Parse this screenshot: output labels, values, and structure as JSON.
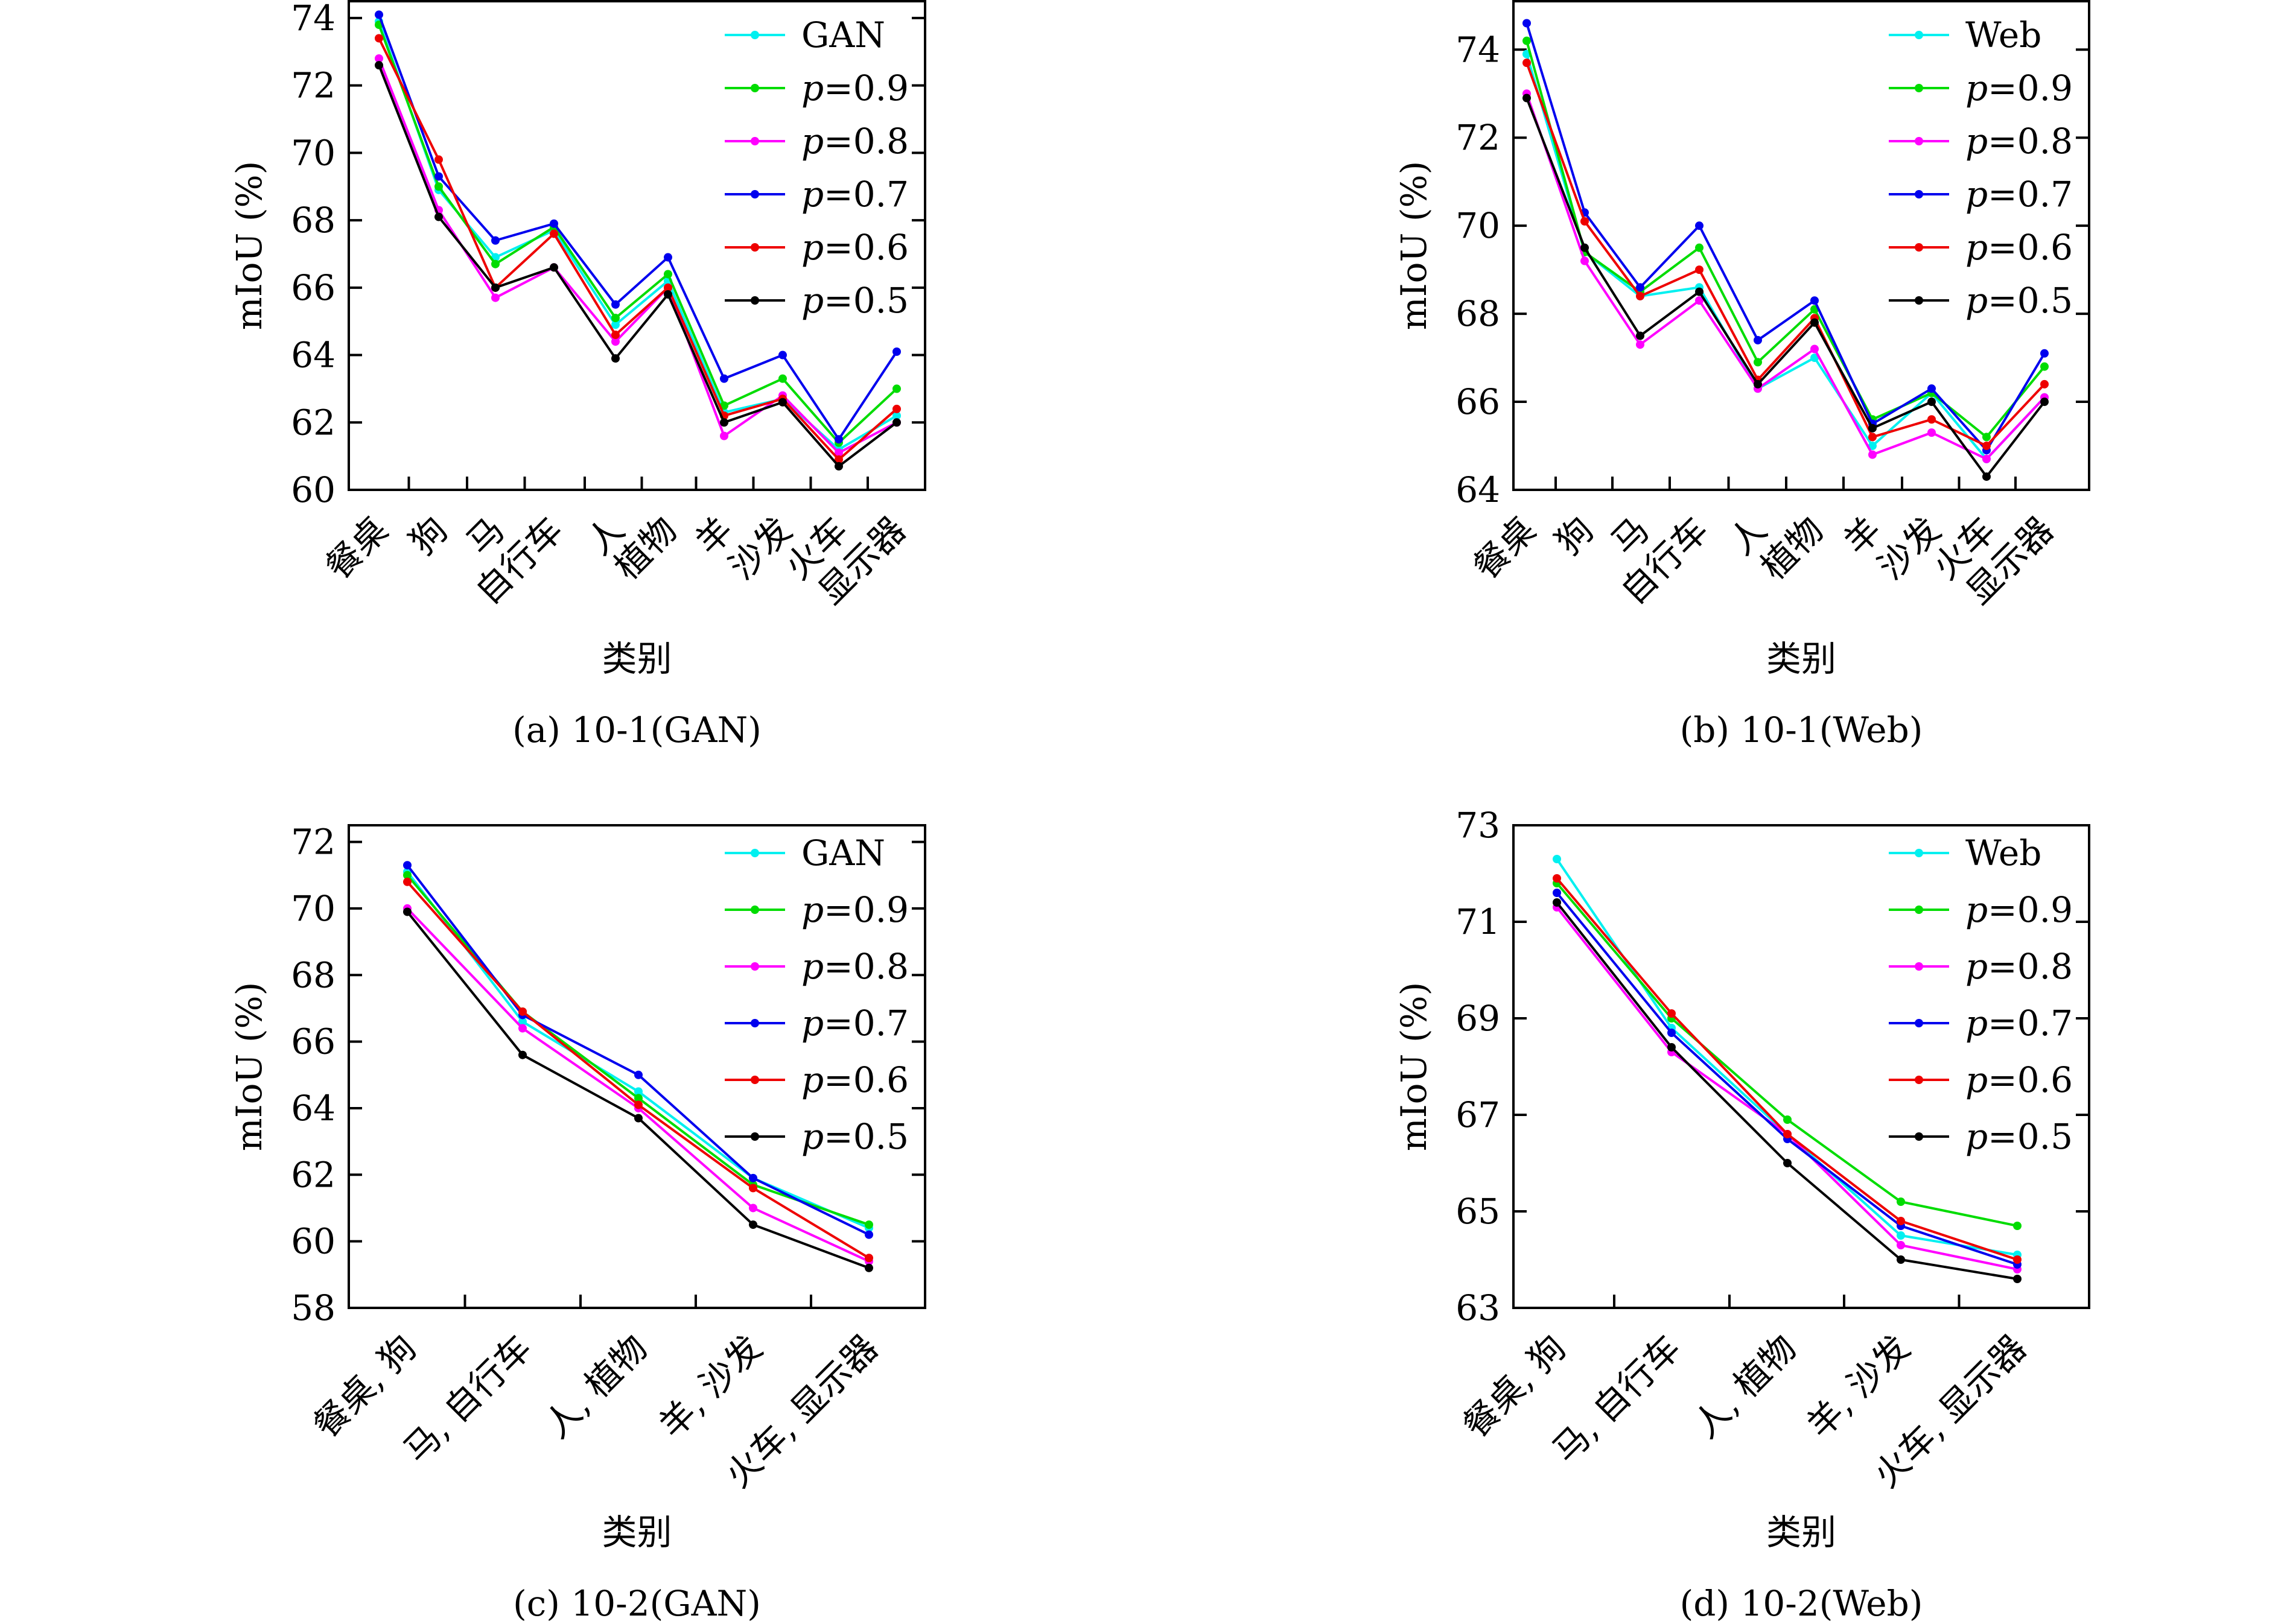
{
  "chart_data": [
    {
      "type": "line",
      "caption": "(a) 10-1(GAN)",
      "xlabel": "类别",
      "ylabel": "mIoU (%)",
      "ylim": [
        60,
        74.5
      ],
      "yticks": [
        "60",
        "62",
        "64",
        "66",
        "68",
        "70",
        "72",
        "74"
      ],
      "categories": [
        "餐桌",
        "狗",
        "马",
        "自行车",
        "人",
        "植物",
        "羊",
        "沙发",
        "火车",
        "显示器"
      ],
      "legend_position": "top-right",
      "series": [
        {
          "name": "GAN",
          "color": "#00f0f0",
          "values": [
            73.9,
            68.9,
            66.9,
            67.7,
            64.9,
            66.2,
            62.3,
            62.7,
            61.2,
            62.2
          ]
        },
        {
          "name": "p=0.9",
          "color": "#00dc00",
          "values": [
            73.8,
            69.0,
            66.7,
            67.8,
            65.1,
            66.4,
            62.5,
            63.3,
            61.4,
            63.0
          ]
        },
        {
          "name": "p=0.8",
          "color": "#ff00ff",
          "values": [
            72.8,
            68.3,
            65.7,
            66.6,
            64.4,
            66.0,
            61.6,
            62.8,
            61.1,
            62.0
          ]
        },
        {
          "name": "p=0.7",
          "color": "#0000ee",
          "values": [
            74.1,
            69.3,
            67.4,
            67.9,
            65.5,
            66.9,
            63.3,
            64.0,
            61.5,
            64.1
          ]
        },
        {
          "name": "p=0.6",
          "color": "#ee0000",
          "values": [
            73.4,
            69.8,
            66.0,
            67.6,
            64.6,
            66.0,
            62.2,
            62.7,
            60.9,
            62.4
          ]
        },
        {
          "name": "p=0.5",
          "color": "#000000",
          "values": [
            72.6,
            68.1,
            66.0,
            66.6,
            63.9,
            65.8,
            62.0,
            62.6,
            60.7,
            62.0
          ]
        }
      ]
    },
    {
      "type": "line",
      "caption": "(b) 10-1(Web)",
      "xlabel": "类别",
      "ylabel": "mIoU (%)",
      "ylim": [
        64,
        75.1
      ],
      "yticks": [
        "64",
        "66",
        "68",
        "70",
        "72",
        "74"
      ],
      "categories": [
        "餐桌",
        "狗",
        "马",
        "自行车",
        "人",
        "植物",
        "羊",
        "沙发",
        "火车",
        "显示器"
      ],
      "legend_position": "top-right",
      "series": [
        {
          "name": "Web",
          "color": "#00f0f0",
          "values": [
            73.9,
            69.4,
            68.4,
            68.6,
            66.3,
            67.0,
            65.0,
            66.2,
            64.7,
            66.1
          ]
        },
        {
          "name": "p=0.9",
          "color": "#00dc00",
          "values": [
            74.2,
            69.4,
            68.5,
            69.5,
            66.9,
            68.1,
            65.6,
            66.2,
            65.2,
            66.8
          ]
        },
        {
          "name": "p=0.8",
          "color": "#ff00ff",
          "values": [
            73.0,
            69.2,
            67.3,
            68.3,
            66.3,
            67.2,
            64.8,
            65.3,
            64.7,
            66.1
          ]
        },
        {
          "name": "p=0.7",
          "color": "#0000ee",
          "values": [
            74.6,
            70.3,
            68.6,
            70.0,
            67.4,
            68.3,
            65.5,
            66.3,
            64.9,
            67.1
          ]
        },
        {
          "name": "p=0.6",
          "color": "#ee0000",
          "values": [
            73.7,
            70.1,
            68.4,
            69.0,
            66.5,
            67.9,
            65.2,
            65.6,
            65.0,
            66.4
          ]
        },
        {
          "name": "p=0.5",
          "color": "#000000",
          "values": [
            72.9,
            69.5,
            67.5,
            68.5,
            66.4,
            67.8,
            65.4,
            66.0,
            64.3,
            66.0
          ]
        }
      ]
    },
    {
      "type": "line",
      "caption": "(c) 10-2(GAN)",
      "xlabel": "类别",
      "ylabel": "mIoU (%)",
      "ylim": [
        58,
        72.5
      ],
      "yticks": [
        "58",
        "60",
        "62",
        "64",
        "66",
        "68",
        "70",
        "72"
      ],
      "categories": [
        "餐桌, 狗",
        "马, 自行车",
        "人, 植物",
        "羊, 沙发",
        "火车, 显示器"
      ],
      "legend_position": "top-right",
      "series": [
        {
          "name": "GAN",
          "color": "#00f0f0",
          "values": [
            71.1,
            66.6,
            64.5,
            61.9,
            60.4
          ]
        },
        {
          "name": "p=0.9",
          "color": "#00dc00",
          "values": [
            71.0,
            66.9,
            64.3,
            61.7,
            60.5
          ]
        },
        {
          "name": "p=0.8",
          "color": "#ff00ff",
          "values": [
            70.0,
            66.4,
            64.0,
            61.0,
            59.4
          ]
        },
        {
          "name": "p=0.7",
          "color": "#0000ee",
          "values": [
            71.3,
            66.8,
            65.0,
            61.9,
            60.2
          ]
        },
        {
          "name": "p=0.6",
          "color": "#ee0000",
          "values": [
            70.8,
            66.9,
            64.1,
            61.6,
            59.5
          ]
        },
        {
          "name": "p=0.5",
          "color": "#000000",
          "values": [
            69.9,
            65.6,
            63.7,
            60.5,
            59.2
          ]
        }
      ]
    },
    {
      "type": "line",
      "caption": "(d) 10-2(Web)",
      "xlabel": "类别",
      "ylabel": "mIoU (%)",
      "ylim": [
        63,
        73
      ],
      "yticks": [
        "63",
        "65",
        "67",
        "69",
        "71",
        "73"
      ],
      "categories": [
        "餐桌, 狗",
        "马, 自行车",
        "人, 植物",
        "羊, 沙发",
        "火车, 显示器"
      ],
      "legend_position": "top-right",
      "series": [
        {
          "name": "Web",
          "color": "#00f0f0",
          "values": [
            72.3,
            68.8,
            66.6,
            64.5,
            64.1
          ]
        },
        {
          "name": "p=0.9",
          "color": "#00dc00",
          "values": [
            71.8,
            69.0,
            66.9,
            65.2,
            64.7
          ]
        },
        {
          "name": "p=0.8",
          "color": "#ff00ff",
          "values": [
            71.3,
            68.3,
            66.6,
            64.3,
            63.8
          ]
        },
        {
          "name": "p=0.7",
          "color": "#0000ee",
          "values": [
            71.6,
            68.7,
            66.5,
            64.7,
            63.9
          ]
        },
        {
          "name": "p=0.6",
          "color": "#ee0000",
          "values": [
            71.9,
            69.1,
            66.6,
            64.8,
            64.0
          ]
        },
        {
          "name": "p=0.5",
          "color": "#000000",
          "values": [
            71.4,
            68.4,
            66.0,
            64.0,
            63.6
          ]
        }
      ]
    }
  ]
}
